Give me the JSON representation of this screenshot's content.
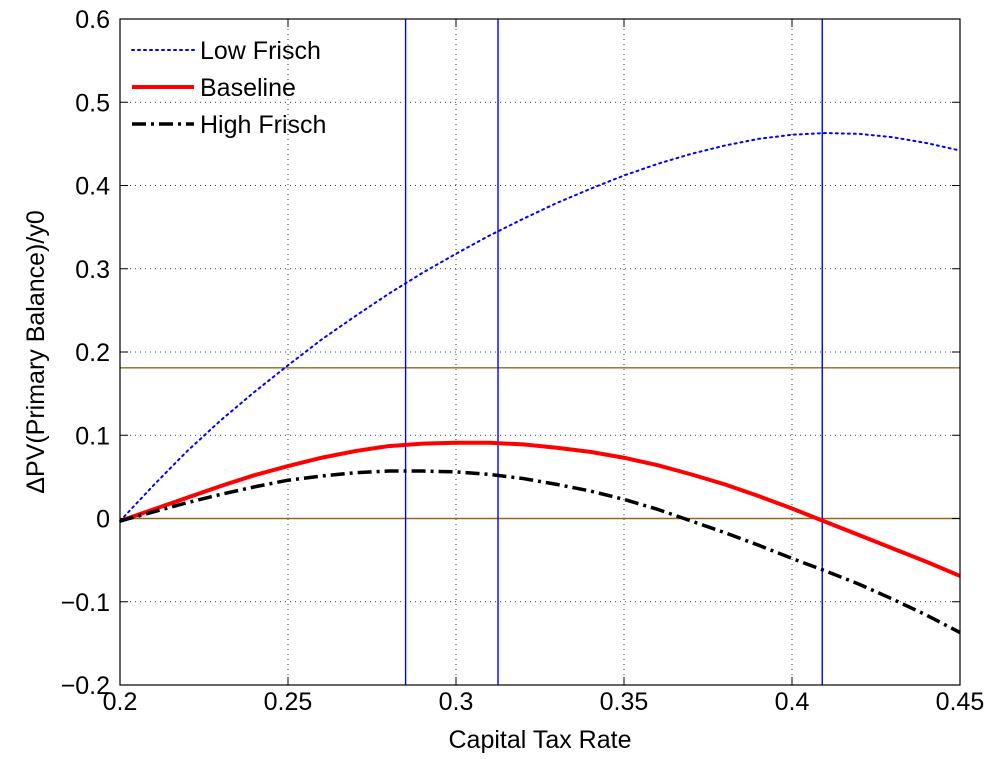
{
  "chart_data": {
    "type": "line",
    "title": "",
    "xlabel": "Capital Tax Rate",
    "ylabel": "ΔPV(Primary Balance)/y0",
    "xlim": [
      0.2,
      0.45
    ],
    "ylim": [
      -0.2,
      0.6
    ],
    "xticks": [
      0.2,
      0.25,
      0.3,
      0.35,
      0.4,
      0.45
    ],
    "xtick_labels": [
      "0.2",
      "0.25",
      "0.3",
      "0.35",
      "0.4",
      "0.45"
    ],
    "yticks": [
      -0.2,
      -0.1,
      0,
      0.1,
      0.2,
      0.3,
      0.4,
      0.5,
      0.6
    ],
    "ytick_labels": [
      "−0.2",
      "−0.1",
      "0",
      "0.1",
      "0.2",
      "0.3",
      "0.4",
      "0.5",
      "0.6"
    ],
    "grid": true,
    "legend_position": "top-left",
    "series": [
      {
        "name": "Low Frisch",
        "color": "#0000ff",
        "style": "dotted",
        "x": [
          0.2,
          0.21,
          0.22,
          0.23,
          0.24,
          0.25,
          0.26,
          0.27,
          0.28,
          0.29,
          0.3,
          0.31,
          0.32,
          0.33,
          0.34,
          0.35,
          0.36,
          0.37,
          0.38,
          0.39,
          0.4,
          0.41,
          0.42,
          0.43,
          0.44,
          0.45
        ],
        "y": [
          -0.003,
          0.04,
          0.081,
          0.118,
          0.152,
          0.184,
          0.215,
          0.243,
          0.27,
          0.295,
          0.318,
          0.34,
          0.36,
          0.379,
          0.396,
          0.412,
          0.426,
          0.438,
          0.448,
          0.456,
          0.461,
          0.463,
          0.462,
          0.458,
          0.451,
          0.442
        ]
      },
      {
        "name": "Baseline",
        "color": "#ff0000",
        "style": "solid",
        "x": [
          0.2,
          0.21,
          0.22,
          0.23,
          0.24,
          0.25,
          0.26,
          0.27,
          0.28,
          0.29,
          0.3,
          0.31,
          0.32,
          0.33,
          0.34,
          0.35,
          0.36,
          0.37,
          0.38,
          0.39,
          0.4,
          0.41,
          0.42,
          0.43,
          0.44,
          0.45
        ],
        "y": [
          -0.003,
          0.011,
          0.025,
          0.039,
          0.052,
          0.063,
          0.073,
          0.081,
          0.087,
          0.09,
          0.091,
          0.091,
          0.089,
          0.085,
          0.08,
          0.073,
          0.064,
          0.053,
          0.041,
          0.027,
          0.012,
          -0.004,
          -0.02,
          -0.036,
          -0.052,
          -0.069
        ]
      },
      {
        "name": "High Frisch",
        "color": "#000000",
        "style": "dashdot",
        "x": [
          0.2,
          0.21,
          0.22,
          0.23,
          0.24,
          0.25,
          0.26,
          0.27,
          0.28,
          0.29,
          0.3,
          0.31,
          0.32,
          0.33,
          0.34,
          0.35,
          0.36,
          0.37,
          0.38,
          0.39,
          0.4,
          0.41,
          0.42,
          0.43,
          0.44,
          0.45
        ],
        "y": [
          -0.003,
          0.008,
          0.019,
          0.029,
          0.038,
          0.046,
          0.051,
          0.055,
          0.057,
          0.057,
          0.056,
          0.053,
          0.048,
          0.041,
          0.033,
          0.023,
          0.011,
          -0.003,
          -0.017,
          -0.032,
          -0.048,
          -0.063,
          -0.079,
          -0.097,
          -0.116,
          -0.137
        ]
      }
    ],
    "vertical_lines": [
      {
        "x": 0.285,
        "color": "#0000ff"
      },
      {
        "x": 0.3125,
        "color": "#0000ff"
      },
      {
        "x": 0.409,
        "color": "#0000ff"
      }
    ],
    "horizontal_lines": [
      {
        "y": 0.181,
        "color": "#8b6e12"
      },
      {
        "y": 0.0,
        "color": "#8b6e12"
      }
    ]
  }
}
